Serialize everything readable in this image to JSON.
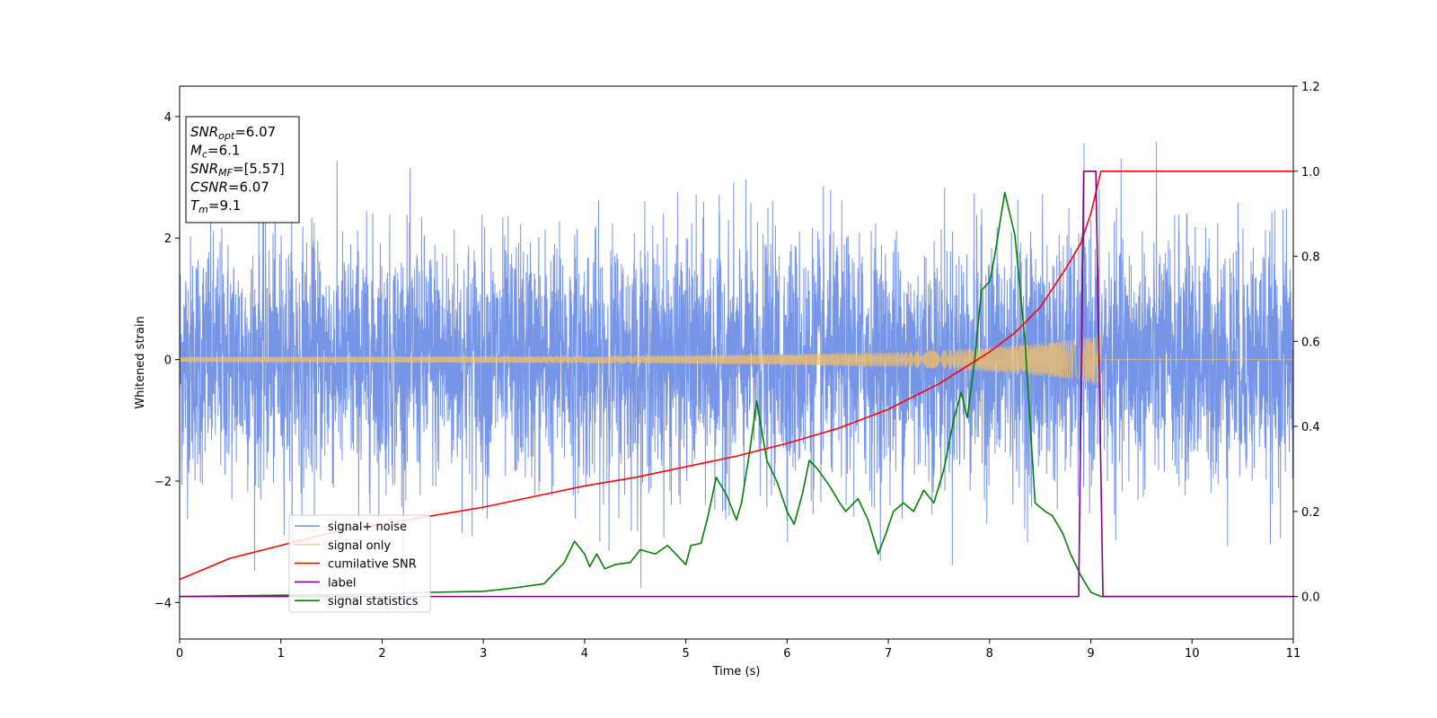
{
  "chart_data": {
    "type": "line",
    "xlabel": "Time (s)",
    "ylabel": "Whitened strain",
    "xlim": [
      0,
      11
    ],
    "ylim_left": [
      -4.6,
      4.5
    ],
    "ylim_right": [
      -0.1,
      1.2
    ],
    "x_ticks": [
      "0",
      "1",
      "2",
      "3",
      "4",
      "5",
      "6",
      "7",
      "8",
      "9",
      "10",
      "11"
    ],
    "y_ticks_left": [
      "4",
      "2",
      "0",
      "−2",
      "−4"
    ],
    "y_ticks_left_values": [
      4,
      2,
      0,
      -2,
      -4
    ],
    "y_ticks_right": [
      "1.2",
      "1.0",
      "0.8",
      "0.6",
      "0.4",
      "0.2",
      "0.0"
    ],
    "y_ticks_right_values": [
      1.2,
      1.0,
      0.8,
      0.6,
      0.4,
      0.2,
      0.0
    ],
    "grid": false,
    "legend_position": "lower-left",
    "annotation": [
      {
        "sym": "SNR",
        "sub": "opt",
        "val": "=6.07"
      },
      {
        "sym": "M",
        "sub": "c",
        "val": "=6.1"
      },
      {
        "sym": "SNR",
        "sub": "MF",
        "val": "=[5.57]"
      },
      {
        "sym": "CSNR",
        "sub": "",
        "val": "=6.07"
      },
      {
        "sym": "T",
        "sub": "m",
        "val": "=9.1"
      }
    ],
    "series": [
      {
        "name": "signal+ noise",
        "axis": "left",
        "color": "#6f8fe6",
        "kind": "noise",
        "sigma": 1.0,
        "x_range": [
          0,
          11
        ]
      },
      {
        "name": "signal only",
        "axis": "left",
        "color": "#f5c064",
        "kind": "chirp",
        "merger_time": 9.1,
        "envelope": {
          "x": [
            0,
            2,
            4,
            5,
            6,
            7,
            7.5,
            8,
            8.5,
            8.8,
            9.0,
            9.1
          ],
          "y": [
            0.04,
            0.05,
            0.06,
            0.07,
            0.09,
            0.12,
            0.15,
            0.2,
            0.27,
            0.32,
            0.38,
            0.45
          ]
        }
      },
      {
        "name": "cumilative SNR",
        "axis": "right",
        "color": "#ff0000",
        "x": [
          0,
          0.5,
          1,
          1.5,
          2,
          2.5,
          3,
          3.5,
          4,
          4.5,
          5,
          5.5,
          6,
          6.5,
          7,
          7.5,
          8,
          8.25,
          8.5,
          8.75,
          8.9,
          9.0,
          9.1,
          11
        ],
        "y": [
          0.04,
          0.09,
          0.12,
          0.15,
          0.17,
          0.19,
          0.21,
          0.235,
          0.26,
          0.28,
          0.305,
          0.33,
          0.36,
          0.395,
          0.44,
          0.5,
          0.575,
          0.62,
          0.68,
          0.77,
          0.83,
          0.9,
          1.0,
          1.0
        ]
      },
      {
        "name": "label",
        "axis": "right",
        "color": "#800080",
        "x": [
          0,
          8.88,
          8.93,
          9.05,
          9.12,
          11
        ],
        "y": [
          0.0,
          0.0,
          1.0,
          1.0,
          0.0,
          0.0
        ]
      },
      {
        "name": "signal statistics",
        "axis": "right",
        "color": "#008000",
        "x": [
          0,
          1,
          2,
          2.5,
          3,
          3.3,
          3.6,
          3.8,
          3.9,
          4.0,
          4.05,
          4.12,
          4.2,
          4.3,
          4.45,
          4.55,
          4.7,
          4.82,
          4.9,
          5.0,
          5.05,
          5.15,
          5.22,
          5.3,
          5.4,
          5.5,
          5.55,
          5.63,
          5.7,
          5.8,
          5.9,
          6.0,
          6.07,
          6.15,
          6.22,
          6.3,
          6.42,
          6.52,
          6.58,
          6.7,
          6.8,
          6.9,
          6.98,
          7.05,
          7.15,
          7.25,
          7.35,
          7.45,
          7.55,
          7.65,
          7.72,
          7.78,
          7.85,
          7.92,
          8.0,
          8.05,
          8.15,
          8.25,
          8.35,
          8.45,
          8.55,
          8.62,
          8.72,
          8.8,
          8.9,
          9.0,
          9.1,
          11
        ],
        "y": [
          0.0,
          0.003,
          0.005,
          0.01,
          0.012,
          0.02,
          0.03,
          0.08,
          0.13,
          0.1,
          0.07,
          0.1,
          0.065,
          0.075,
          0.08,
          0.11,
          0.1,
          0.12,
          0.1,
          0.075,
          0.12,
          0.125,
          0.19,
          0.28,
          0.24,
          0.18,
          0.22,
          0.34,
          0.46,
          0.32,
          0.27,
          0.2,
          0.17,
          0.24,
          0.32,
          0.3,
          0.26,
          0.22,
          0.2,
          0.23,
          0.18,
          0.1,
          0.15,
          0.2,
          0.22,
          0.2,
          0.25,
          0.22,
          0.3,
          0.42,
          0.48,
          0.42,
          0.55,
          0.72,
          0.74,
          0.8,
          0.95,
          0.85,
          0.6,
          0.22,
          0.2,
          0.19,
          0.15,
          0.1,
          0.05,
          0.01,
          0.0,
          0.0
        ]
      }
    ]
  }
}
